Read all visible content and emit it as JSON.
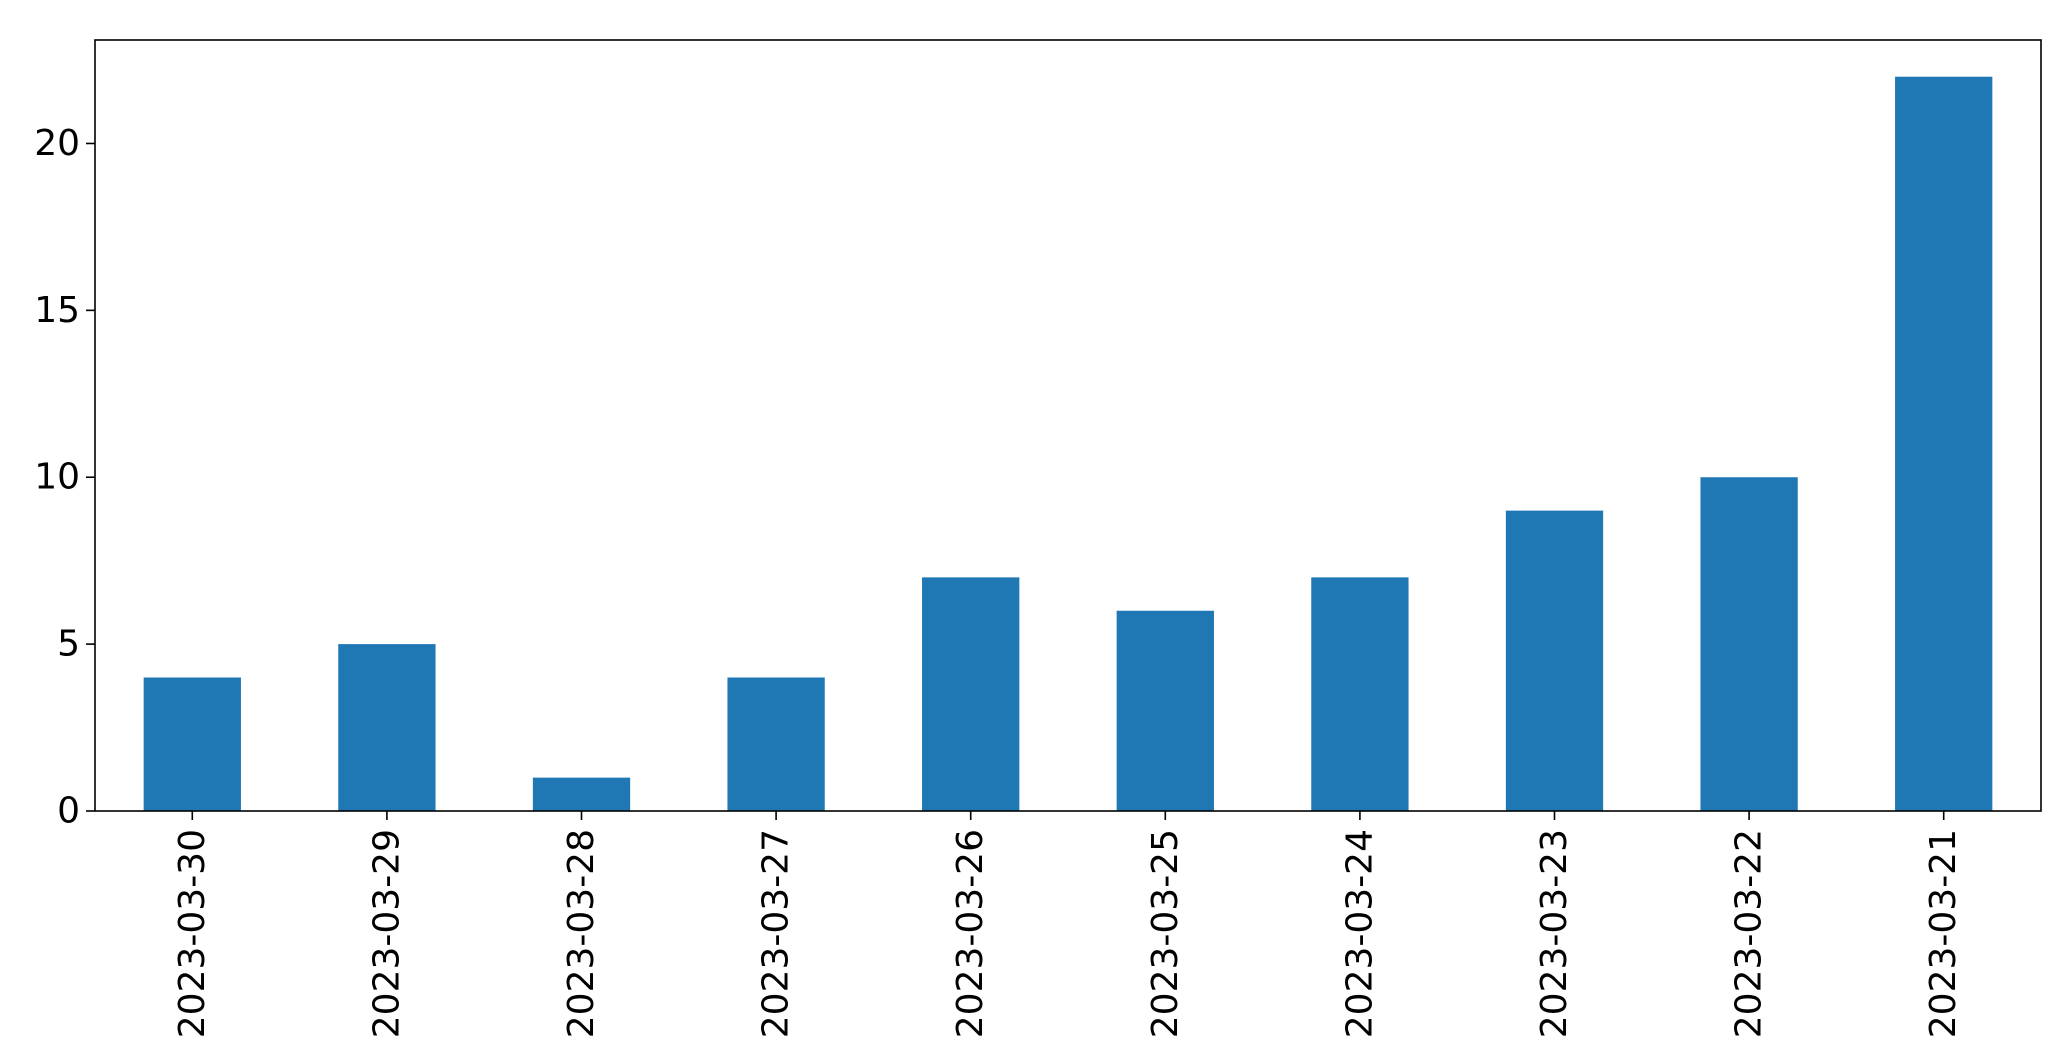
{
  "colors": {
    "bar": "#1f77b4",
    "axis": "#000000",
    "background": "#ffffff"
  },
  "chart_data": {
    "type": "bar",
    "title": "",
    "xlabel": "",
    "ylabel": "",
    "categories": [
      "2023-03-30",
      "2023-03-29",
      "2023-03-28",
      "2023-03-27",
      "2023-03-26",
      "2023-03-25",
      "2023-03-24",
      "2023-03-23",
      "2023-03-22",
      "2023-03-21"
    ],
    "values": [
      4,
      5,
      1,
      4,
      7,
      6,
      7,
      9,
      10,
      22
    ],
    "ylim": [
      0,
      23.1
    ],
    "yticks": [
      0,
      5,
      10,
      15,
      20
    ],
    "grid": false,
    "legend": "none"
  }
}
